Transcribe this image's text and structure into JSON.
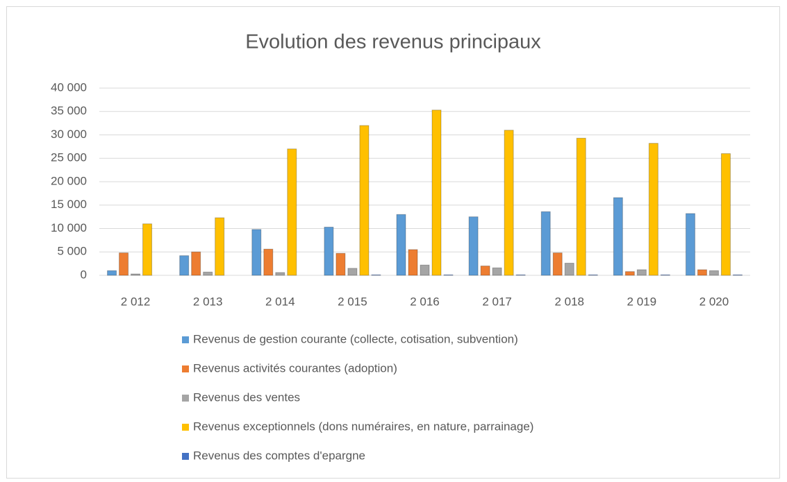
{
  "chart_data": {
    "type": "bar",
    "title": "Evolution des revenus principaux",
    "categories": [
      "2 012",
      "2 013",
      "2 014",
      "2 015",
      "2 016",
      "2 017",
      "2 018",
      "2 019",
      "2 020"
    ],
    "series": [
      {
        "name": "Revenus de gestion courante (collecte, cotisation, subvention)",
        "color": "#5b9bd5",
        "values": [
          1000,
          4200,
          9800,
          10300,
          13000,
          12500,
          13600,
          16600,
          13200
        ]
      },
      {
        "name": "Revenus activités courantes (adoption)",
        "color": "#ed7d31",
        "values": [
          4800,
          5000,
          5600,
          4700,
          5500,
          2000,
          4800,
          800,
          1200
        ]
      },
      {
        "name": "Revenus des ventes",
        "color": "#a5a5a5",
        "values": [
          300,
          700,
          600,
          1500,
          2200,
          1600,
          2600,
          1200,
          1000
        ]
      },
      {
        "name": "Revenus exceptionnels (dons numéraires, en nature, parrainage)",
        "color": "#ffc000",
        "values": [
          11000,
          12300,
          27000,
          32000,
          35300,
          31000,
          29300,
          28200,
          26000
        ]
      },
      {
        "name": "Revenus des comptes d'epargne",
        "color": "#4472c4",
        "values": [
          0,
          0,
          0,
          100,
          100,
          100,
          100,
          100,
          100
        ]
      }
    ],
    "ylim": [
      0,
      40000
    ],
    "yticks": [
      0,
      {
        "value": 5000,
        "label": "5 000"
      },
      {
        "value": 10000,
        "label": "10 000"
      },
      {
        "value": 15000,
        "label": "15 000"
      },
      {
        "value": 20000,
        "label": "20 000"
      },
      {
        "value": 25000,
        "label": "25 000"
      },
      {
        "value": 30000,
        "label": "30 000"
      },
      {
        "value": 35000,
        "label": "35 000"
      },
      {
        "value": 40000,
        "label": "40 000"
      }
    ],
    "grid": true
  }
}
